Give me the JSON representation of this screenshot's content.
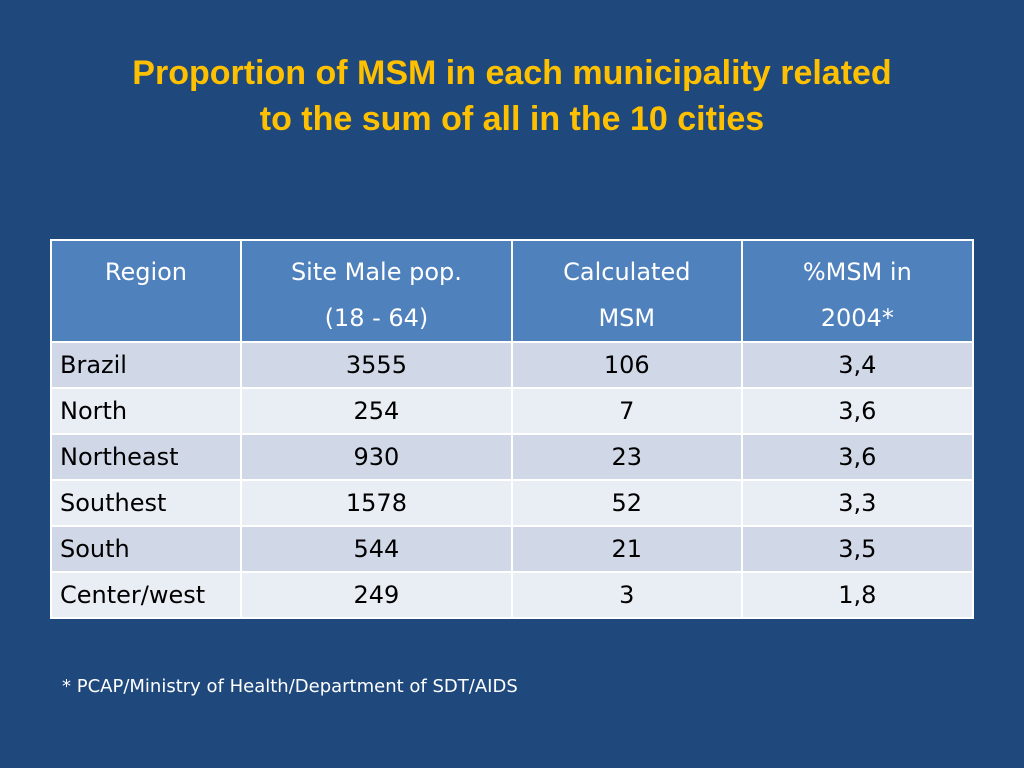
{
  "title": {
    "line1": "Proportion of MSM in each municipality related",
    "line2": "to the sum of all in the 10 cities"
  },
  "table": {
    "headers": [
      {
        "line1": "Region",
        "line2": ""
      },
      {
        "line1": "Site Male pop.",
        "line2": "(18 - 64)"
      },
      {
        "line1": "Calculated",
        "line2": "MSM"
      },
      {
        "line1": "%MSM in",
        "line2": "2004*"
      }
    ],
    "rows": [
      [
        "Brazil",
        "3555",
        "106",
        "3,4"
      ],
      [
        "North",
        "254",
        "7",
        "3,6"
      ],
      [
        "Northeast",
        "930",
        "23",
        "3,6"
      ],
      [
        "Southest",
        "1578",
        "52",
        "3,3"
      ],
      [
        "South",
        "544",
        "21",
        "3,5"
      ],
      [
        "Center/west",
        "249",
        "3",
        "1,8"
      ]
    ]
  },
  "footnote": "* PCAP/Ministry of Health/Department of SDT/AIDS",
  "colors": {
    "background": "#1f497d",
    "title": "#ffc000",
    "header_fill": "#4f81bd",
    "row_fill_odd": "#d0d8e8",
    "row_fill_even": "#e9edf4"
  }
}
